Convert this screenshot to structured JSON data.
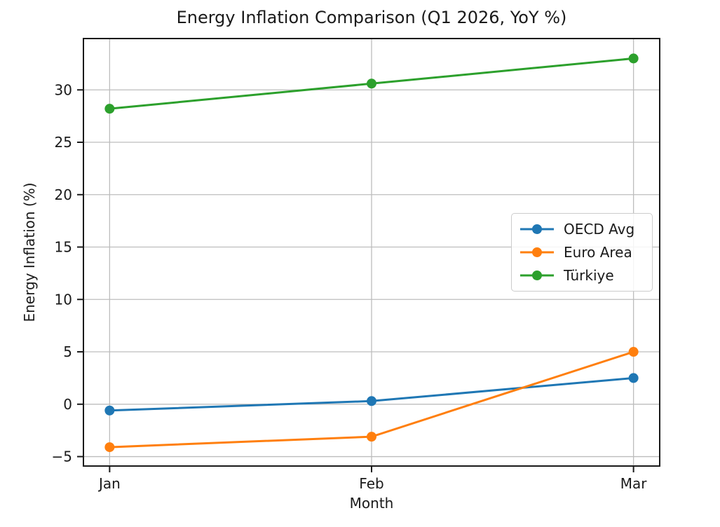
{
  "chart_data": {
    "type": "line",
    "title": "Energy Inflation Comparison (Q1 2026, YoY %)",
    "xlabel": "Month",
    "ylabel": "Energy Inflation (%)",
    "categories": [
      "Jan",
      "Feb",
      "Mar"
    ],
    "series": [
      {
        "name": "OECD Avg",
        "color": "#1f77b4",
        "values": [
          -0.6,
          0.3,
          2.5
        ]
      },
      {
        "name": "Euro Area",
        "color": "#ff7f0e",
        "values": [
          -4.1,
          -3.1,
          5.0
        ]
      },
      {
        "name": "Türkiye",
        "color": "#2ca02c",
        "values": [
          28.2,
          30.6,
          33.0
        ]
      }
    ],
    "yticks": [
      -5,
      0,
      5,
      10,
      15,
      20,
      25,
      30
    ],
    "ylim": [
      -5.9,
      34.9
    ],
    "xlim": [
      -0.1,
      2.1
    ],
    "grid": true,
    "legend_position": "center-right",
    "marker": "circle",
    "grid_color": "#bdbdbd",
    "axis_color": "#1a1a1a"
  }
}
